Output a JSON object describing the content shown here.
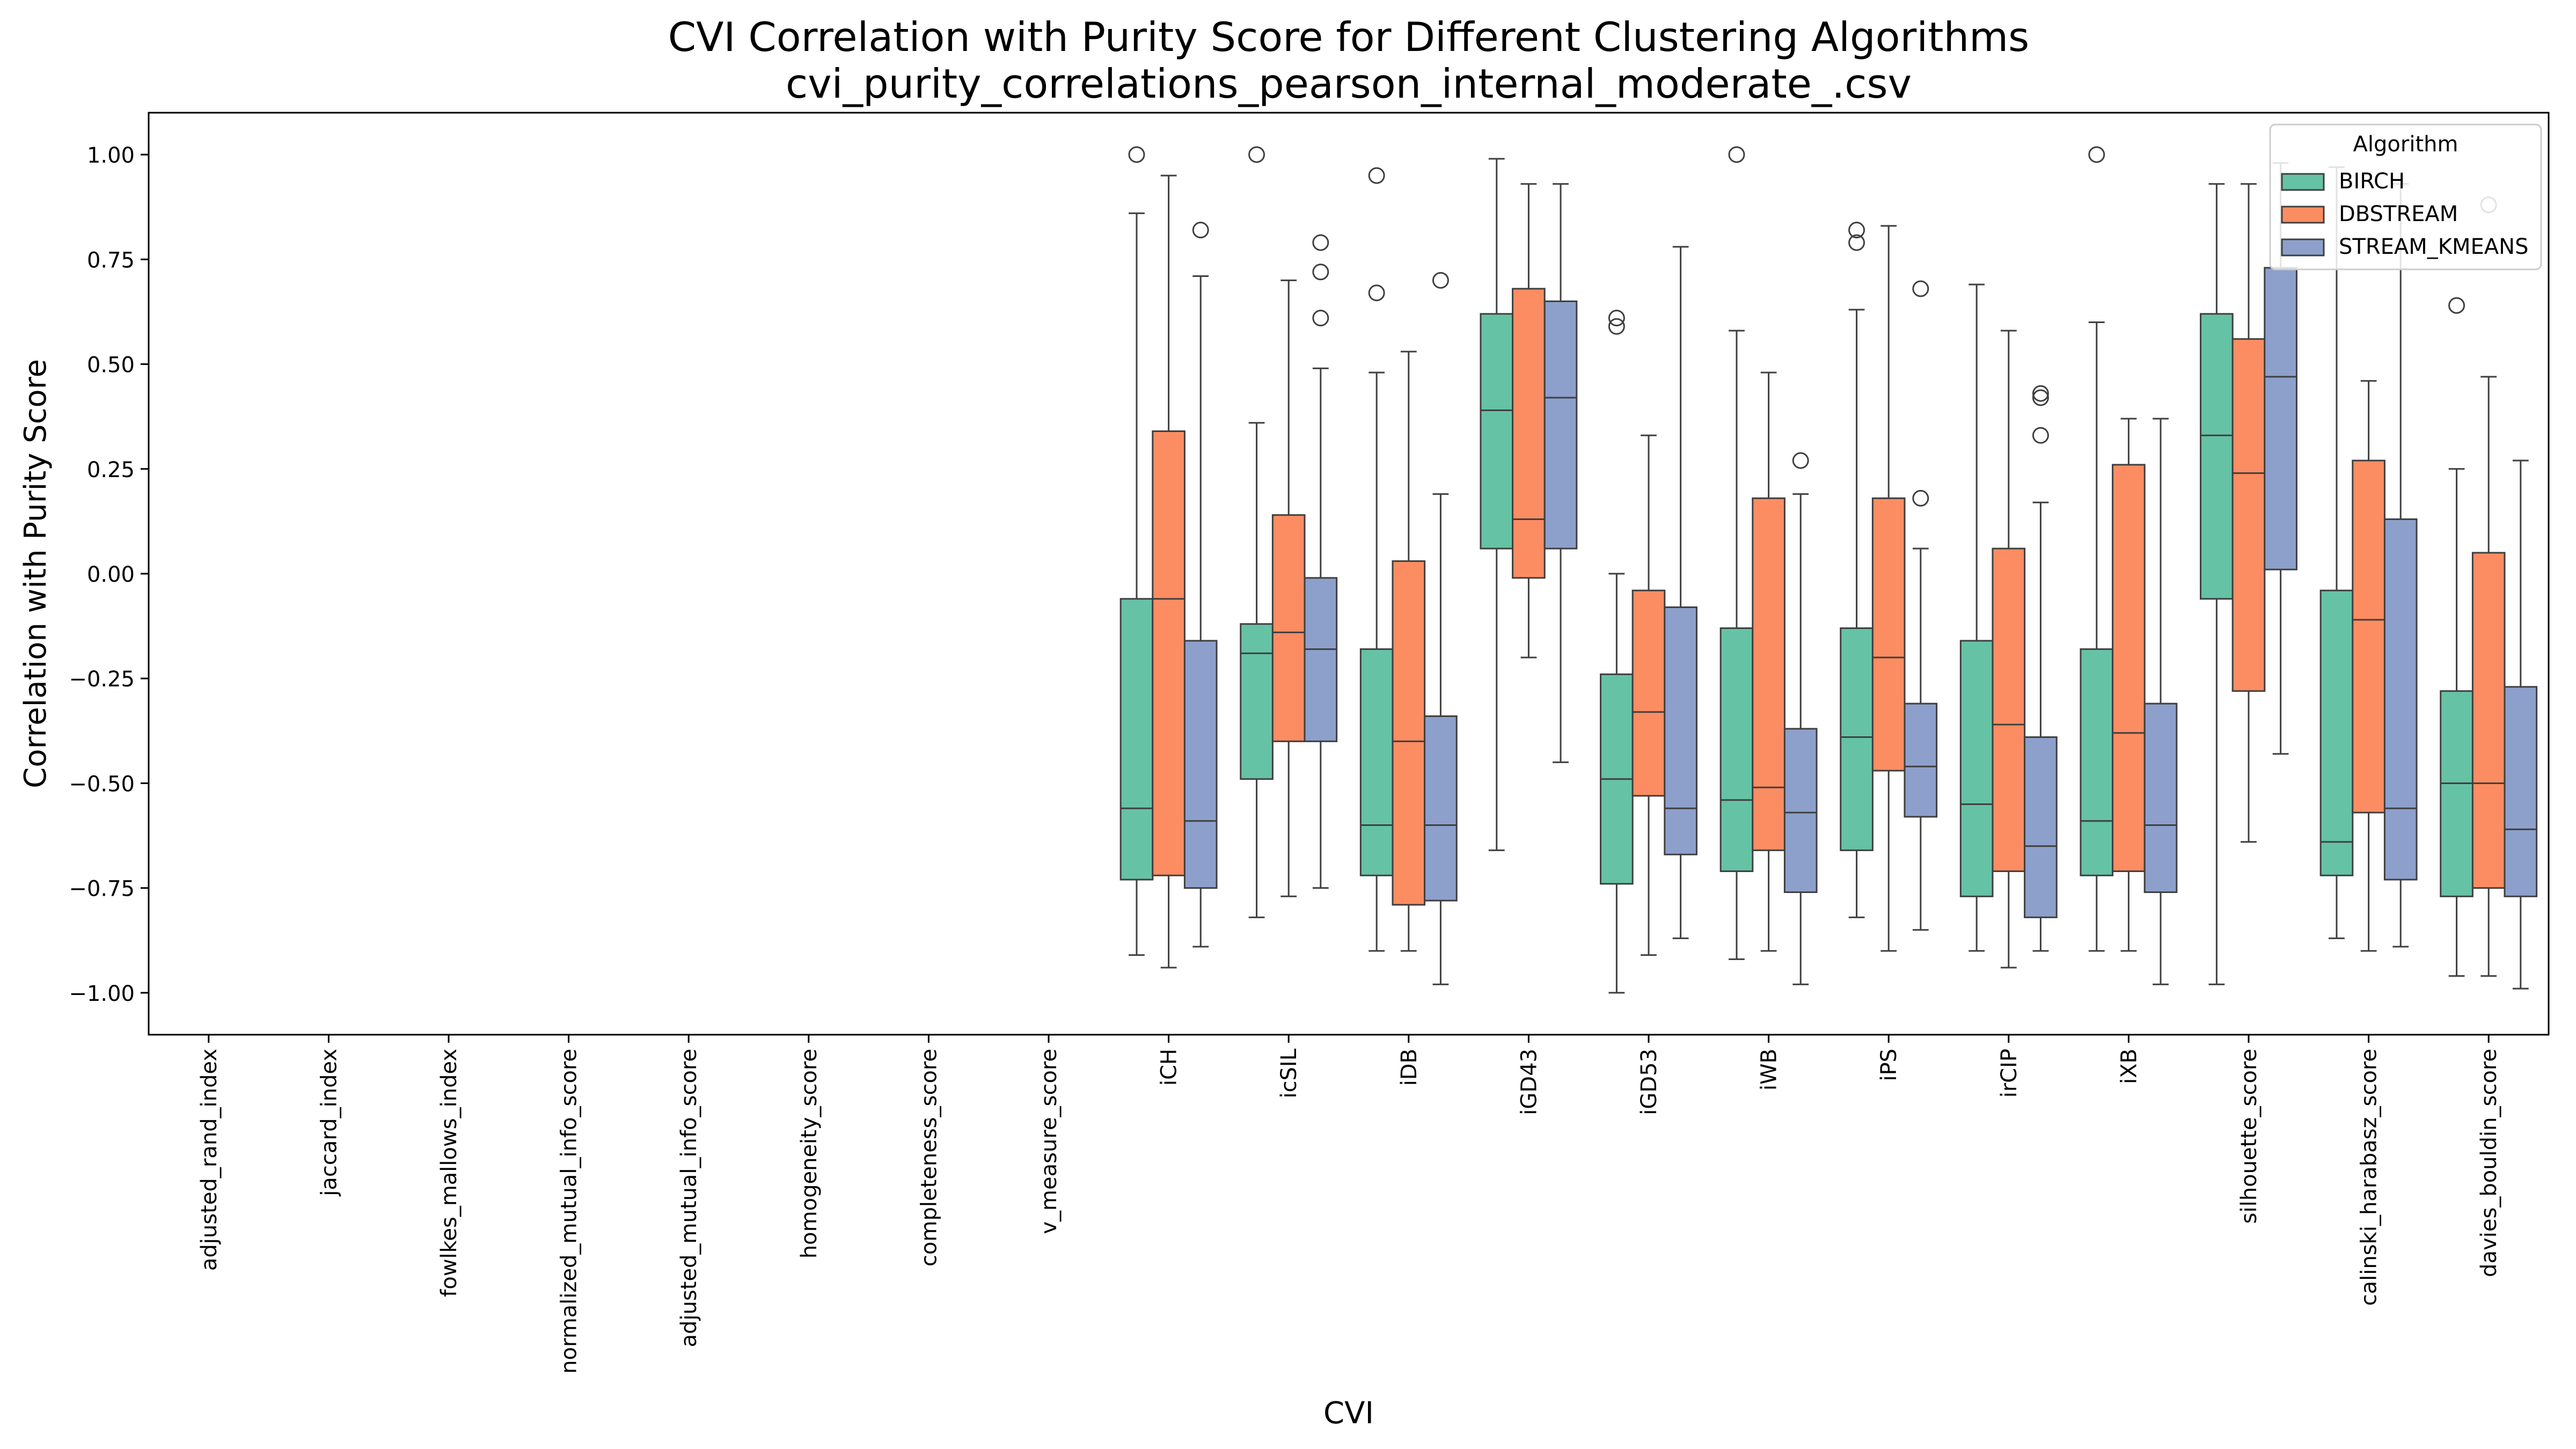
{
  "chart_data": {
    "type": "box",
    "title": "CVI Correlation with Purity Score for Different Clustering Algorithms",
    "subtitle": "cvi_purity_correlations_pearson_internal_moderate_.csv",
    "xlabel": "CVI",
    "ylabel": "Correlation with Purity Score",
    "ylim": [
      -1.1,
      1.1
    ],
    "yticks": [
      -1.0,
      -0.75,
      -0.5,
      -0.25,
      0.0,
      0.25,
      0.5,
      0.75,
      1.0
    ],
    "ytick_labels": [
      "−1.00",
      "−0.75",
      "−0.50",
      "−0.25",
      "0.00",
      "0.25",
      "0.50",
      "0.75",
      "1.00"
    ],
    "grid": false,
    "categories": [
      "adjusted_rand_index",
      "jaccard_index",
      "fowlkes_mallows_index",
      "normalized_mutual_info_score",
      "adjusted_mutual_info_score",
      "homogeneity_score",
      "completeness_score",
      "v_measure_score",
      "iCH",
      "icSIL",
      "iDB",
      "iGD43",
      "iGD53",
      "iWB",
      "iPS",
      "irCIP",
      "iXB",
      "silhouette_score",
      "calinski_harabasz_score",
      "davies_bouldin_score"
    ],
    "legend": {
      "title": "Algorithm",
      "placement": "top-right",
      "entries": [
        "BIRCH",
        "DBSTREAM",
        "STREAM_KMEANS"
      ]
    },
    "colors": {
      "BIRCH": "#66c2a5",
      "DBSTREAM": "#fc8d62",
      "STREAM_KMEANS": "#8da0cb"
    },
    "series": [
      {
        "name": "BIRCH",
        "boxes": [
          null,
          null,
          null,
          null,
          null,
          null,
          null,
          null,
          {
            "whislo": -0.91,
            "q1": -0.73,
            "med": -0.56,
            "q3": -0.06,
            "whishi": 0.86,
            "fliers": [
              1.0
            ]
          },
          {
            "whislo": -0.82,
            "q1": -0.49,
            "med": -0.19,
            "q3": -0.12,
            "whishi": 0.36,
            "fliers": [
              1.0
            ]
          },
          {
            "whislo": -0.9,
            "q1": -0.72,
            "med": -0.6,
            "q3": -0.18,
            "whishi": 0.48,
            "fliers": [
              0.95,
              0.67
            ]
          },
          {
            "whislo": -0.66,
            "q1": 0.06,
            "med": 0.39,
            "q3": 0.62,
            "whishi": 0.99,
            "fliers": []
          },
          {
            "whislo": -1.0,
            "q1": -0.74,
            "med": -0.49,
            "q3": -0.24,
            "whishi": 0.0,
            "fliers": [
              0.61,
              0.59
            ]
          },
          {
            "whislo": -0.92,
            "q1": -0.71,
            "med": -0.54,
            "q3": -0.13,
            "whishi": 0.58,
            "fliers": [
              1.0
            ]
          },
          {
            "whislo": -0.82,
            "q1": -0.66,
            "med": -0.39,
            "q3": -0.13,
            "whishi": 0.63,
            "fliers": [
              0.82,
              0.79
            ]
          },
          {
            "whislo": -0.9,
            "q1": -0.77,
            "med": -0.55,
            "q3": -0.16,
            "whishi": 0.69,
            "fliers": []
          },
          {
            "whislo": -0.9,
            "q1": -0.72,
            "med": -0.59,
            "q3": -0.18,
            "whishi": 0.6,
            "fliers": [
              1.0
            ]
          },
          {
            "whislo": -0.98,
            "q1": -0.06,
            "med": 0.33,
            "q3": 0.62,
            "whishi": 0.93,
            "fliers": []
          },
          {
            "whislo": -0.87,
            "q1": -0.72,
            "med": -0.64,
            "q3": -0.04,
            "whishi": 0.97,
            "fliers": []
          },
          {
            "whislo": -0.96,
            "q1": -0.77,
            "med": -0.5,
            "q3": -0.28,
            "whishi": 0.25,
            "fliers": [
              0.64
            ]
          }
        ]
      },
      {
        "name": "DBSTREAM",
        "boxes": [
          null,
          null,
          null,
          null,
          null,
          null,
          null,
          null,
          {
            "whislo": -0.94,
            "q1": -0.72,
            "med": -0.06,
            "q3": 0.34,
            "whishi": 0.95,
            "fliers": []
          },
          {
            "whislo": -0.77,
            "q1": -0.4,
            "med": -0.14,
            "q3": 0.14,
            "whishi": 0.7,
            "fliers": []
          },
          {
            "whislo": -0.9,
            "q1": -0.79,
            "med": -0.4,
            "q3": 0.03,
            "whishi": 0.53,
            "fliers": []
          },
          {
            "whislo": -0.2,
            "q1": -0.01,
            "med": 0.13,
            "q3": 0.68,
            "whishi": 0.93,
            "fliers": []
          },
          {
            "whislo": -0.91,
            "q1": -0.53,
            "med": -0.33,
            "q3": -0.04,
            "whishi": 0.33,
            "fliers": []
          },
          {
            "whislo": -0.9,
            "q1": -0.66,
            "med": -0.51,
            "q3": 0.18,
            "whishi": 0.48,
            "fliers": []
          },
          {
            "whislo": -0.9,
            "q1": -0.47,
            "med": -0.2,
            "q3": 0.18,
            "whishi": 0.83,
            "fliers": []
          },
          {
            "whislo": -0.94,
            "q1": -0.71,
            "med": -0.36,
            "q3": 0.06,
            "whishi": 0.58,
            "fliers": []
          },
          {
            "whislo": -0.9,
            "q1": -0.71,
            "med": -0.38,
            "q3": 0.26,
            "whishi": 0.37,
            "fliers": []
          },
          {
            "whislo": -0.64,
            "q1": -0.28,
            "med": 0.24,
            "q3": 0.56,
            "whishi": 0.93,
            "fliers": []
          },
          {
            "whislo": -0.9,
            "q1": -0.57,
            "med": -0.11,
            "q3": 0.27,
            "whishi": 0.46,
            "fliers": []
          },
          {
            "whislo": -0.96,
            "q1": -0.75,
            "med": -0.5,
            "q3": 0.05,
            "whishi": 0.47,
            "fliers": [
              0.88
            ]
          }
        ]
      },
      {
        "name": "STREAM_KMEANS",
        "boxes": [
          null,
          null,
          null,
          null,
          null,
          null,
          null,
          null,
          {
            "whislo": -0.89,
            "q1": -0.75,
            "med": -0.59,
            "q3": -0.16,
            "whishi": 0.71,
            "fliers": [
              0.82
            ]
          },
          {
            "whislo": -0.75,
            "q1": -0.4,
            "med": -0.18,
            "q3": -0.01,
            "whishi": 0.49,
            "fliers": [
              0.79,
              0.72,
              0.61
            ]
          },
          {
            "whislo": -0.98,
            "q1": -0.78,
            "med": -0.6,
            "q3": -0.34,
            "whishi": 0.19,
            "fliers": [
              0.7
            ]
          },
          {
            "whislo": -0.45,
            "q1": 0.06,
            "med": 0.42,
            "q3": 0.65,
            "whishi": 0.93,
            "fliers": []
          },
          {
            "whislo": -0.87,
            "q1": -0.67,
            "med": -0.56,
            "q3": -0.08,
            "whishi": 0.78,
            "fliers": []
          },
          {
            "whislo": -0.98,
            "q1": -0.76,
            "med": -0.57,
            "q3": -0.37,
            "whishi": 0.19,
            "fliers": [
              0.27
            ]
          },
          {
            "whislo": -0.85,
            "q1": -0.58,
            "med": -0.46,
            "q3": -0.31,
            "whishi": 0.06,
            "fliers": [
              0.68,
              0.18
            ]
          },
          {
            "whislo": -0.9,
            "q1": -0.82,
            "med": -0.65,
            "q3": -0.39,
            "whishi": 0.17,
            "fliers": [
              0.43,
              0.42,
              0.33
            ]
          },
          {
            "whislo": -0.98,
            "q1": -0.76,
            "med": -0.6,
            "q3": -0.31,
            "whishi": 0.37,
            "fliers": []
          },
          {
            "whislo": -0.43,
            "q1": 0.01,
            "med": 0.47,
            "q3": 0.73,
            "whishi": 0.98,
            "fliers": []
          },
          {
            "whislo": -0.89,
            "q1": -0.73,
            "med": -0.56,
            "q3": 0.13,
            "whishi": 0.93,
            "fliers": []
          },
          {
            "whislo": -0.99,
            "q1": -0.77,
            "med": -0.61,
            "q3": -0.27,
            "whishi": 0.27,
            "fliers": []
          }
        ]
      }
    ]
  }
}
